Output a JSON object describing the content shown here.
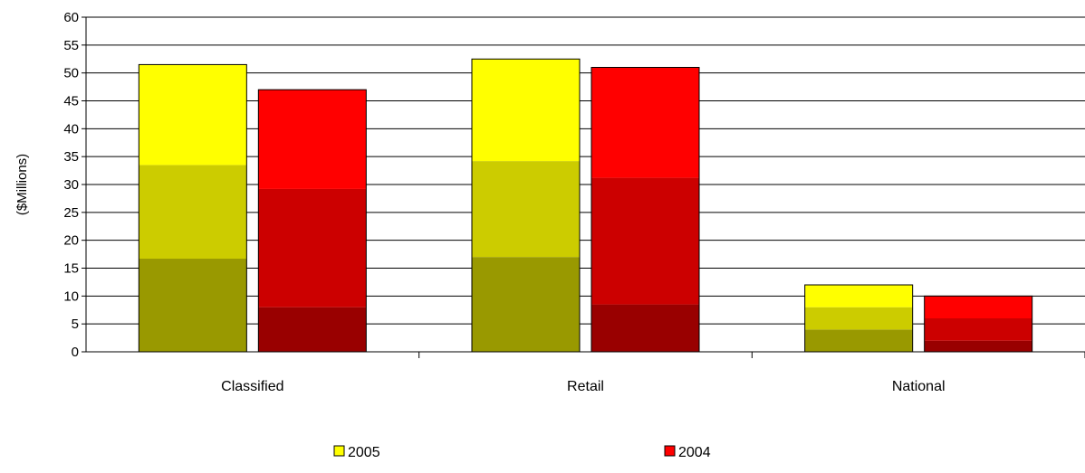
{
  "chart_data": {
    "type": "bar",
    "stacked_segments": true,
    "categories": [
      "Classified",
      "Retail",
      "National"
    ],
    "ylabel": "($Millions)",
    "xlabel": "",
    "title": "",
    "ylim": [
      0,
      60
    ],
    "y_ticks": [
      0,
      5,
      10,
      15,
      20,
      25,
      30,
      35,
      40,
      45,
      50,
      55,
      60
    ],
    "grid": "horizontal",
    "legend_position": "bottom",
    "series": [
      {
        "name": "2005",
        "color": "#ffff00",
        "segment_colors": [
          "#999900",
          "#cccc00",
          "#ffff00"
        ],
        "totals": [
          51.5,
          52.5,
          12
        ],
        "segments": [
          [
            16.7,
            16.8,
            18.0
          ],
          [
            17.0,
            17.2,
            18.3
          ],
          [
            4.0,
            4.0,
            4.0
          ]
        ]
      },
      {
        "name": "2004",
        "color": "#ff0000",
        "segment_colors": [
          "#990000",
          "#cc0000",
          "#ff0000"
        ],
        "totals": [
          47,
          51,
          10
        ],
        "segments": [
          [
            8.0,
            21.2,
            17.8
          ],
          [
            8.5,
            22.7,
            19.8
          ],
          [
            2.0,
            4.0,
            4.0
          ]
        ]
      }
    ]
  }
}
